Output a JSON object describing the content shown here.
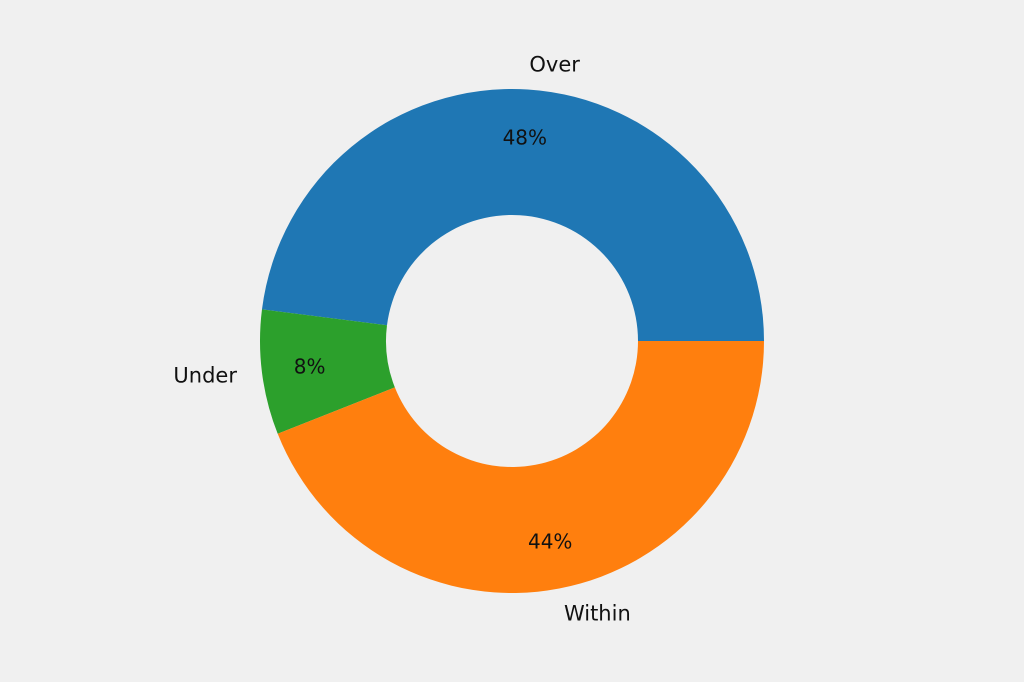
{
  "chart_data": {
    "type": "pie",
    "donut": true,
    "title": "",
    "background": "#f0f0f0",
    "slices": [
      {
        "label": "Over",
        "value": 48,
        "percent_label": "48%",
        "color": "#1f77b4"
      },
      {
        "label": "Under",
        "value": 8,
        "percent_label": "8%",
        "color": "#2ca02c"
      },
      {
        "label": "Within",
        "value": 44,
        "percent_label": "44%",
        "color": "#ff7f0e"
      }
    ]
  }
}
